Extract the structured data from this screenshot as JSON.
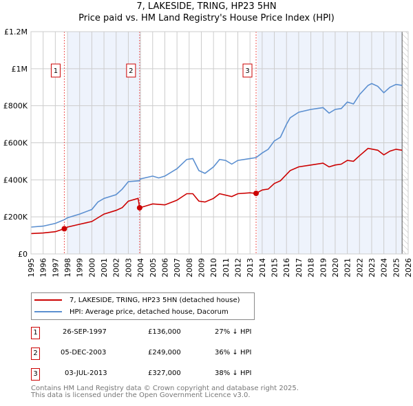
{
  "chart_data": {
    "type": "line",
    "title": "7, LAKESIDE, TRING, HP23 5HN",
    "subtitle": "Price paid vs. HM Land Registry's House Price Index (HPI)",
    "xlim": [
      1995,
      2026
    ],
    "ylim": [
      0,
      1200000
    ],
    "x_ticks": [
      "1995",
      "1996",
      "1997",
      "1998",
      "1999",
      "2000",
      "2001",
      "2002",
      "2003",
      "2004",
      "2005",
      "2006",
      "2007",
      "2008",
      "2009",
      "2010",
      "2011",
      "2012",
      "2013",
      "2014",
      "2015",
      "2016",
      "2017",
      "2018",
      "2019",
      "2020",
      "2021",
      "2022",
      "2023",
      "2024",
      "2025",
      "2026"
    ],
    "y_ticks": [
      {
        "v": 0,
        "label": "£0"
      },
      {
        "v": 200000,
        "label": "£200K"
      },
      {
        "v": 400000,
        "label": "£400K"
      },
      {
        "v": 600000,
        "label": "£600K"
      },
      {
        "v": 800000,
        "label": "£800K"
      },
      {
        "v": 1000000,
        "label": "£1M"
      },
      {
        "v": 1200000,
        "label": "£1.2M"
      }
    ],
    "grid": true,
    "series": [
      {
        "name": "7, LAKESIDE, TRING, HP23 5HN (detached house)",
        "color": "#cc0000",
        "points": [
          [
            1995,
            110
          ],
          [
            1996,
            113
          ],
          [
            1997,
            120
          ],
          [
            1997.74,
            136
          ],
          [
            1998,
            145
          ],
          [
            1999,
            160
          ],
          [
            2000,
            175
          ],
          [
            2000.5,
            195
          ],
          [
            2001,
            215
          ],
          [
            2002,
            235
          ],
          [
            2002.5,
            250
          ],
          [
            2003,
            285
          ],
          [
            2003.8,
            300
          ],
          [
            2003.93,
            249
          ],
          [
            2004.5,
            260
          ],
          [
            2005,
            270
          ],
          [
            2006,
            265
          ],
          [
            2007,
            290
          ],
          [
            2007.8,
            325
          ],
          [
            2008.3,
            325
          ],
          [
            2008.8,
            285
          ],
          [
            2009.3,
            280
          ],
          [
            2010,
            300
          ],
          [
            2010.5,
            325
          ],
          [
            2011.5,
            310
          ],
          [
            2012,
            325
          ],
          [
            2013,
            330
          ],
          [
            2013.5,
            327
          ],
          [
            2014,
            345
          ],
          [
            2014.5,
            350
          ],
          [
            2015,
            380
          ],
          [
            2015.5,
            395
          ],
          [
            2016.3,
            450
          ],
          [
            2017,
            470
          ],
          [
            2018,
            480
          ],
          [
            2019,
            490
          ],
          [
            2019.5,
            470
          ],
          [
            2020,
            480
          ],
          [
            2020.5,
            485
          ],
          [
            2021,
            505
          ],
          [
            2021.5,
            500
          ],
          [
            2022,
            530
          ],
          [
            2022.7,
            570
          ],
          [
            2023.5,
            560
          ],
          [
            2024,
            535
          ],
          [
            2024.5,
            555
          ],
          [
            2025,
            565
          ],
          [
            2025.5,
            560
          ]
        ]
      },
      {
        "name": "HPI: Average price, detached house, Dacorum",
        "color": "#5b8fd0",
        "points": [
          [
            1995,
            145
          ],
          [
            1996,
            150
          ],
          [
            1997,
            165
          ],
          [
            1997.75,
            185
          ],
          [
            1998,
            195
          ],
          [
            1999,
            215
          ],
          [
            2000,
            240
          ],
          [
            2000.5,
            280
          ],
          [
            2001,
            300
          ],
          [
            2002,
            320
          ],
          [
            2002.5,
            350
          ],
          [
            2003,
            390
          ],
          [
            2003.9,
            395
          ],
          [
            2004,
            405
          ],
          [
            2005,
            420
          ],
          [
            2005.5,
            410
          ],
          [
            2006,
            420
          ],
          [
            2007,
            460
          ],
          [
            2007.8,
            510
          ],
          [
            2008.3,
            515
          ],
          [
            2008.8,
            450
          ],
          [
            2009.3,
            435
          ],
          [
            2010,
            470
          ],
          [
            2010.5,
            510
          ],
          [
            2011,
            505
          ],
          [
            2011.5,
            485
          ],
          [
            2012,
            505
          ],
          [
            2013,
            515
          ],
          [
            2013.5,
            520
          ],
          [
            2014,
            545
          ],
          [
            2014.5,
            565
          ],
          [
            2015,
            610
          ],
          [
            2015.5,
            630
          ],
          [
            2016,
            700
          ],
          [
            2016.3,
            735
          ],
          [
            2017,
            765
          ],
          [
            2018,
            780
          ],
          [
            2019,
            790
          ],
          [
            2019.5,
            760
          ],
          [
            2020,
            780
          ],
          [
            2020.5,
            785
          ],
          [
            2021,
            820
          ],
          [
            2021.5,
            810
          ],
          [
            2022,
            860
          ],
          [
            2022.7,
            910
          ],
          [
            2023,
            920
          ],
          [
            2023.5,
            905
          ],
          [
            2024,
            870
          ],
          [
            2024.5,
            900
          ],
          [
            2025,
            915
          ],
          [
            2025.5,
            910
          ]
        ]
      }
    ],
    "sales": [
      {
        "id": "1",
        "x": 1997.74,
        "price": 136000
      },
      {
        "id": "2",
        "x": 2003.93,
        "price": 249000
      },
      {
        "id": "3",
        "x": 2013.5,
        "price": 327000
      }
    ],
    "shaded_ranges": [
      [
        1998,
        2004
      ],
      [
        2013.6,
        2025.5
      ]
    ],
    "hatched_from": 2025.5,
    "y_unit": "thousands"
  },
  "legend": [
    "7, LAKESIDE, TRING, HP23 5HN (detached house)",
    "HPI: Average price, detached house, Dacorum"
  ],
  "sales_table": [
    {
      "id": "1",
      "date": "26-SEP-1997",
      "price": "£136,000",
      "hpi": "27% ↓ HPI"
    },
    {
      "id": "2",
      "date": "05-DEC-2003",
      "price": "£249,000",
      "hpi": "36% ↓ HPI"
    },
    {
      "id": "3",
      "date": "03-JUL-2013",
      "price": "£327,000",
      "hpi": "38% ↓ HPI"
    }
  ],
  "footer": [
    "Contains HM Land Registry data © Crown copyright and database right 2025.",
    "This data is licensed under the Open Government Licence v3.0."
  ]
}
